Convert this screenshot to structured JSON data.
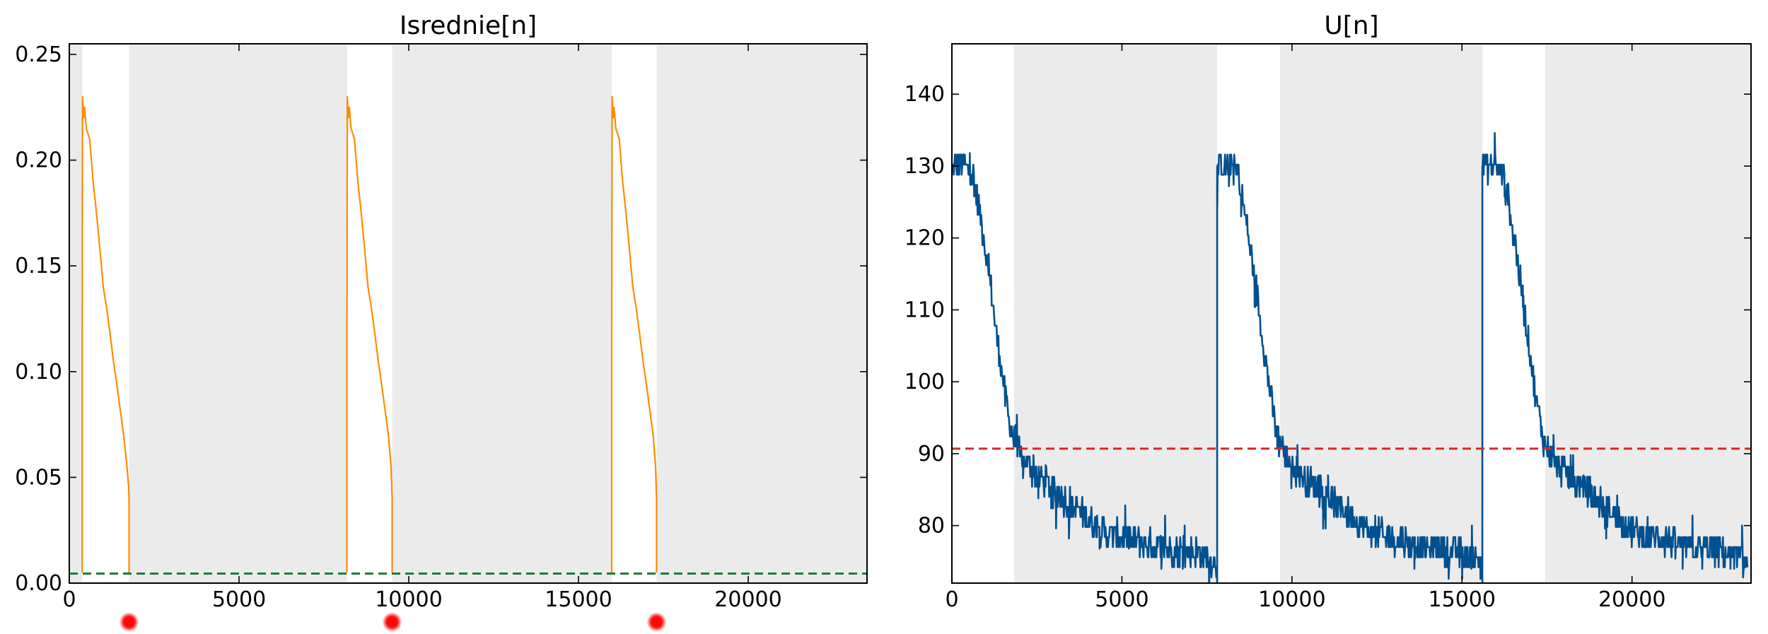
{
  "figure": {
    "background": "#ffffff",
    "shade_color": "#ebebeb"
  },
  "chart_data": [
    {
      "type": "line",
      "title": "Isrednie[n]",
      "xlabel": "",
      "ylabel": "",
      "xlim": [
        0,
        23500
      ],
      "ylim": [
        0,
        0.255
      ],
      "grid": false,
      "x_ticks": [
        0,
        5000,
        10000,
        15000,
        20000
      ],
      "x_tick_labels": [
        "0",
        "5000",
        "10000",
        "15000",
        "20000"
      ],
      "y_ticks": [
        0,
        0.05,
        0.1,
        0.15,
        0.2,
        0.25
      ],
      "y_tick_labels": [
        "0.00",
        "0.05",
        "0.10",
        "0.15",
        "0.20",
        "0.25"
      ],
      "shaded_regions": [
        [
          0,
          380
        ],
        [
          1760,
          8180
        ],
        [
          9510,
          15980
        ],
        [
          17300,
          23500
        ]
      ],
      "series": [
        {
          "color": "#ff8c00",
          "segments": [
            [
              [
                380,
                0.005
              ],
              [
                380,
                0.12
              ],
              [
                390,
                0.23
              ],
              [
                420,
                0.22
              ],
              [
                450,
                0.225
              ],
              [
                500,
                0.215
              ],
              [
                600,
                0.21
              ],
              [
                700,
                0.19
              ],
              [
                800,
                0.175
              ],
              [
                900,
                0.158
              ],
              [
                1000,
                0.14
              ],
              [
                1100,
                0.13
              ],
              [
                1200,
                0.118
              ],
              [
                1300,
                0.105
              ],
              [
                1400,
                0.094
              ],
              [
                1500,
                0.082
              ],
              [
                1600,
                0.07
              ],
              [
                1700,
                0.055
              ],
              [
                1750,
                0.045
              ],
              [
                1760,
                0.04
              ],
              [
                1760,
                0.005
              ]
            ],
            [
              [
                8180,
                0.005
              ],
              [
                8180,
                0.12
              ],
              [
                8190,
                0.23
              ],
              [
                8220,
                0.22
              ],
              [
                8250,
                0.225
              ],
              [
                8300,
                0.215
              ],
              [
                8400,
                0.21
              ],
              [
                8500,
                0.19
              ],
              [
                8600,
                0.175
              ],
              [
                8700,
                0.158
              ],
              [
                8800,
                0.14
              ],
              [
                8900,
                0.13
              ],
              [
                9000,
                0.118
              ],
              [
                9100,
                0.105
              ],
              [
                9200,
                0.094
              ],
              [
                9300,
                0.082
              ],
              [
                9400,
                0.07
              ],
              [
                9480,
                0.055
              ],
              [
                9500,
                0.045
              ],
              [
                9510,
                0.04
              ],
              [
                9510,
                0.005
              ]
            ],
            [
              [
                15980,
                0.005
              ],
              [
                15980,
                0.12
              ],
              [
                15990,
                0.23
              ],
              [
                16020,
                0.22
              ],
              [
                16050,
                0.225
              ],
              [
                16100,
                0.215
              ],
              [
                16200,
                0.21
              ],
              [
                16300,
                0.19
              ],
              [
                16400,
                0.175
              ],
              [
                16500,
                0.158
              ],
              [
                16600,
                0.14
              ],
              [
                16700,
                0.13
              ],
              [
                16800,
                0.118
              ],
              [
                16900,
                0.105
              ],
              [
                17000,
                0.094
              ],
              [
                17100,
                0.082
              ],
              [
                17200,
                0.07
              ],
              [
                17270,
                0.055
              ],
              [
                17290,
                0.045
              ],
              [
                17300,
                0.04
              ],
              [
                17300,
                0.005
              ]
            ]
          ]
        }
      ],
      "reference_lines": [
        {
          "y": 0.0045,
          "color": "#1f7a3e",
          "style": "dashed"
        }
      ],
      "markers_below_axis": {
        "x": [
          1760,
          9510,
          17300
        ],
        "color": "#ff0000"
      }
    },
    {
      "type": "line",
      "title": "U[n]",
      "xlabel": "",
      "ylabel": "",
      "xlim": [
        0,
        23500
      ],
      "ylim": [
        72,
        147
      ],
      "grid": false,
      "x_ticks": [
        0,
        5000,
        10000,
        15000,
        20000
      ],
      "x_tick_labels": [
        "0",
        "5000",
        "10000",
        "15000",
        "20000"
      ],
      "y_ticks": [
        80,
        90,
        100,
        110,
        120,
        130,
        140
      ],
      "y_tick_labels": [
        "80",
        "90",
        "100",
        "110",
        "120",
        "130",
        "140"
      ],
      "shaded_regions": [
        [
          1830,
          7800
        ],
        [
          9650,
          15600
        ],
        [
          17450,
          23500
        ]
      ],
      "series": [
        {
          "color": "#00508f",
          "cycle_length": 7800,
          "cycles": 3,
          "profile": [
            [
              0,
              130
            ],
            [
              400,
              130
            ],
            [
              600,
              129
            ],
            [
              800,
              124
            ],
            [
              1000,
              118
            ],
            [
              1200,
              111
            ],
            [
              1400,
              104
            ],
            [
              1600,
              97
            ],
            [
              1800,
              92
            ],
            [
              2100,
              89
            ],
            [
              2500,
              87
            ],
            [
              3000,
              85
            ],
            [
              3500,
              83
            ],
            [
              4000,
              81
            ],
            [
              4500,
              79
            ],
            [
              5000,
              78.5
            ],
            [
              6000,
              77
            ],
            [
              7000,
              76.5
            ],
            [
              7800,
              75
            ]
          ],
          "noise_amplitude": 2
        }
      ],
      "reference_lines": [
        {
          "y": 90.7,
          "color": "#d62728",
          "style": "dashed"
        }
      ]
    }
  ]
}
